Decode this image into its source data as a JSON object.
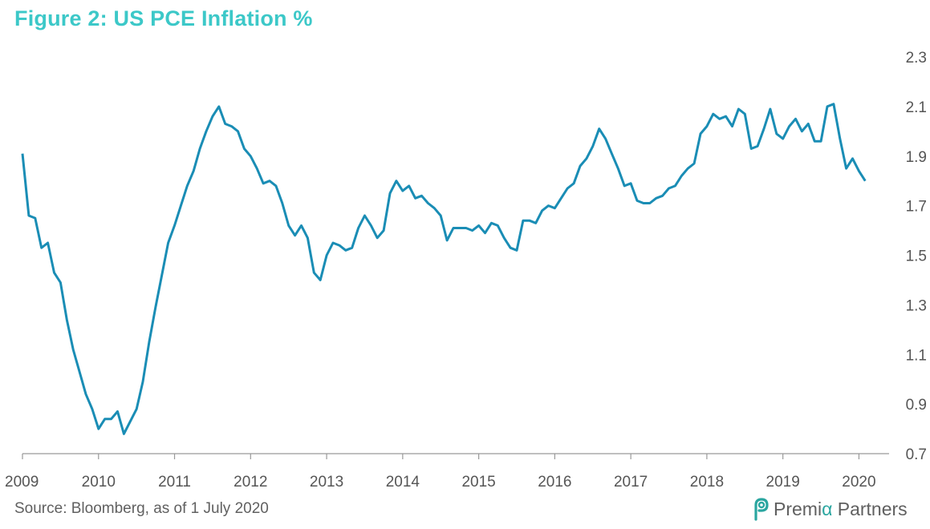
{
  "title": "Figure 2: US PCE Inflation %",
  "source": "Source: Bloomberg, as of 1 July 2020",
  "brand": {
    "name_part1": "Premi",
    "name_alpha": "α",
    "name_part2": " Partners",
    "logo_icon": "premia-logo-icon"
  },
  "colors": {
    "title": "#3cc8c8",
    "line": "#1a8db5",
    "axis": "#999999",
    "text": "#555555",
    "brand_accent": "#2aa6a0"
  },
  "chart_data": {
    "type": "line",
    "title": "Figure 2: US PCE Inflation %",
    "xlabel": "",
    "ylabel": "",
    "xlim": [
      2009.0,
      2020.333
    ],
    "ylim": [
      0.7,
      2.3
    ],
    "yticks": [
      "2.3",
      "2.1",
      "1.9",
      "1.7",
      "1.5",
      "1.3",
      "1.1",
      "0.9",
      "0.7"
    ],
    "xticks": [
      "2009",
      "2010",
      "2011",
      "2012",
      "2013",
      "2014",
      "2015",
      "2016",
      "2017",
      "2018",
      "2019",
      "2020"
    ],
    "grid": false,
    "legend": "none",
    "series": [
      {
        "start": "2009-01",
        "frequency": "monthly",
        "values": [
          1.91,
          1.66,
          1.65,
          1.53,
          1.55,
          1.43,
          1.39,
          1.24,
          1.12,
          1.03,
          0.94,
          0.88,
          0.8,
          0.84,
          0.84,
          0.87,
          0.78,
          0.83,
          0.88,
          0.99,
          1.15,
          1.29,
          1.42,
          1.55,
          1.62,
          1.7,
          1.78,
          1.84,
          1.93,
          2.0,
          2.06,
          2.1,
          2.03,
          2.02,
          2.0,
          1.93,
          1.9,
          1.85,
          1.79,
          1.8,
          1.78,
          1.71,
          1.62,
          1.58,
          1.62,
          1.57,
          1.43,
          1.4,
          1.5,
          1.55,
          1.54,
          1.52,
          1.53,
          1.61,
          1.66,
          1.62,
          1.57,
          1.6,
          1.75,
          1.8,
          1.76,
          1.78,
          1.73,
          1.74,
          1.71,
          1.69,
          1.66,
          1.56,
          1.61,
          1.61,
          1.61,
          1.6,
          1.62,
          1.59,
          1.63,
          1.62,
          1.57,
          1.53,
          1.52,
          1.64,
          1.64,
          1.63,
          1.68,
          1.7,
          1.69,
          1.73,
          1.77,
          1.79,
          1.86,
          1.89,
          1.94,
          2.01,
          1.97,
          1.91,
          1.85,
          1.78,
          1.79,
          1.72,
          1.71,
          1.71,
          1.73,
          1.74,
          1.77,
          1.78,
          1.82,
          1.85,
          1.87,
          1.99,
          2.02,
          2.07,
          2.05,
          2.06,
          2.02,
          2.09,
          2.07,
          1.93,
          1.94,
          2.01,
          2.09,
          1.99,
          1.97,
          2.02,
          2.05,
          2.0,
          2.03,
          1.96,
          1.96,
          2.1,
          2.11,
          1.97,
          1.85,
          1.89,
          1.84,
          1.8
        ]
      }
    ]
  }
}
